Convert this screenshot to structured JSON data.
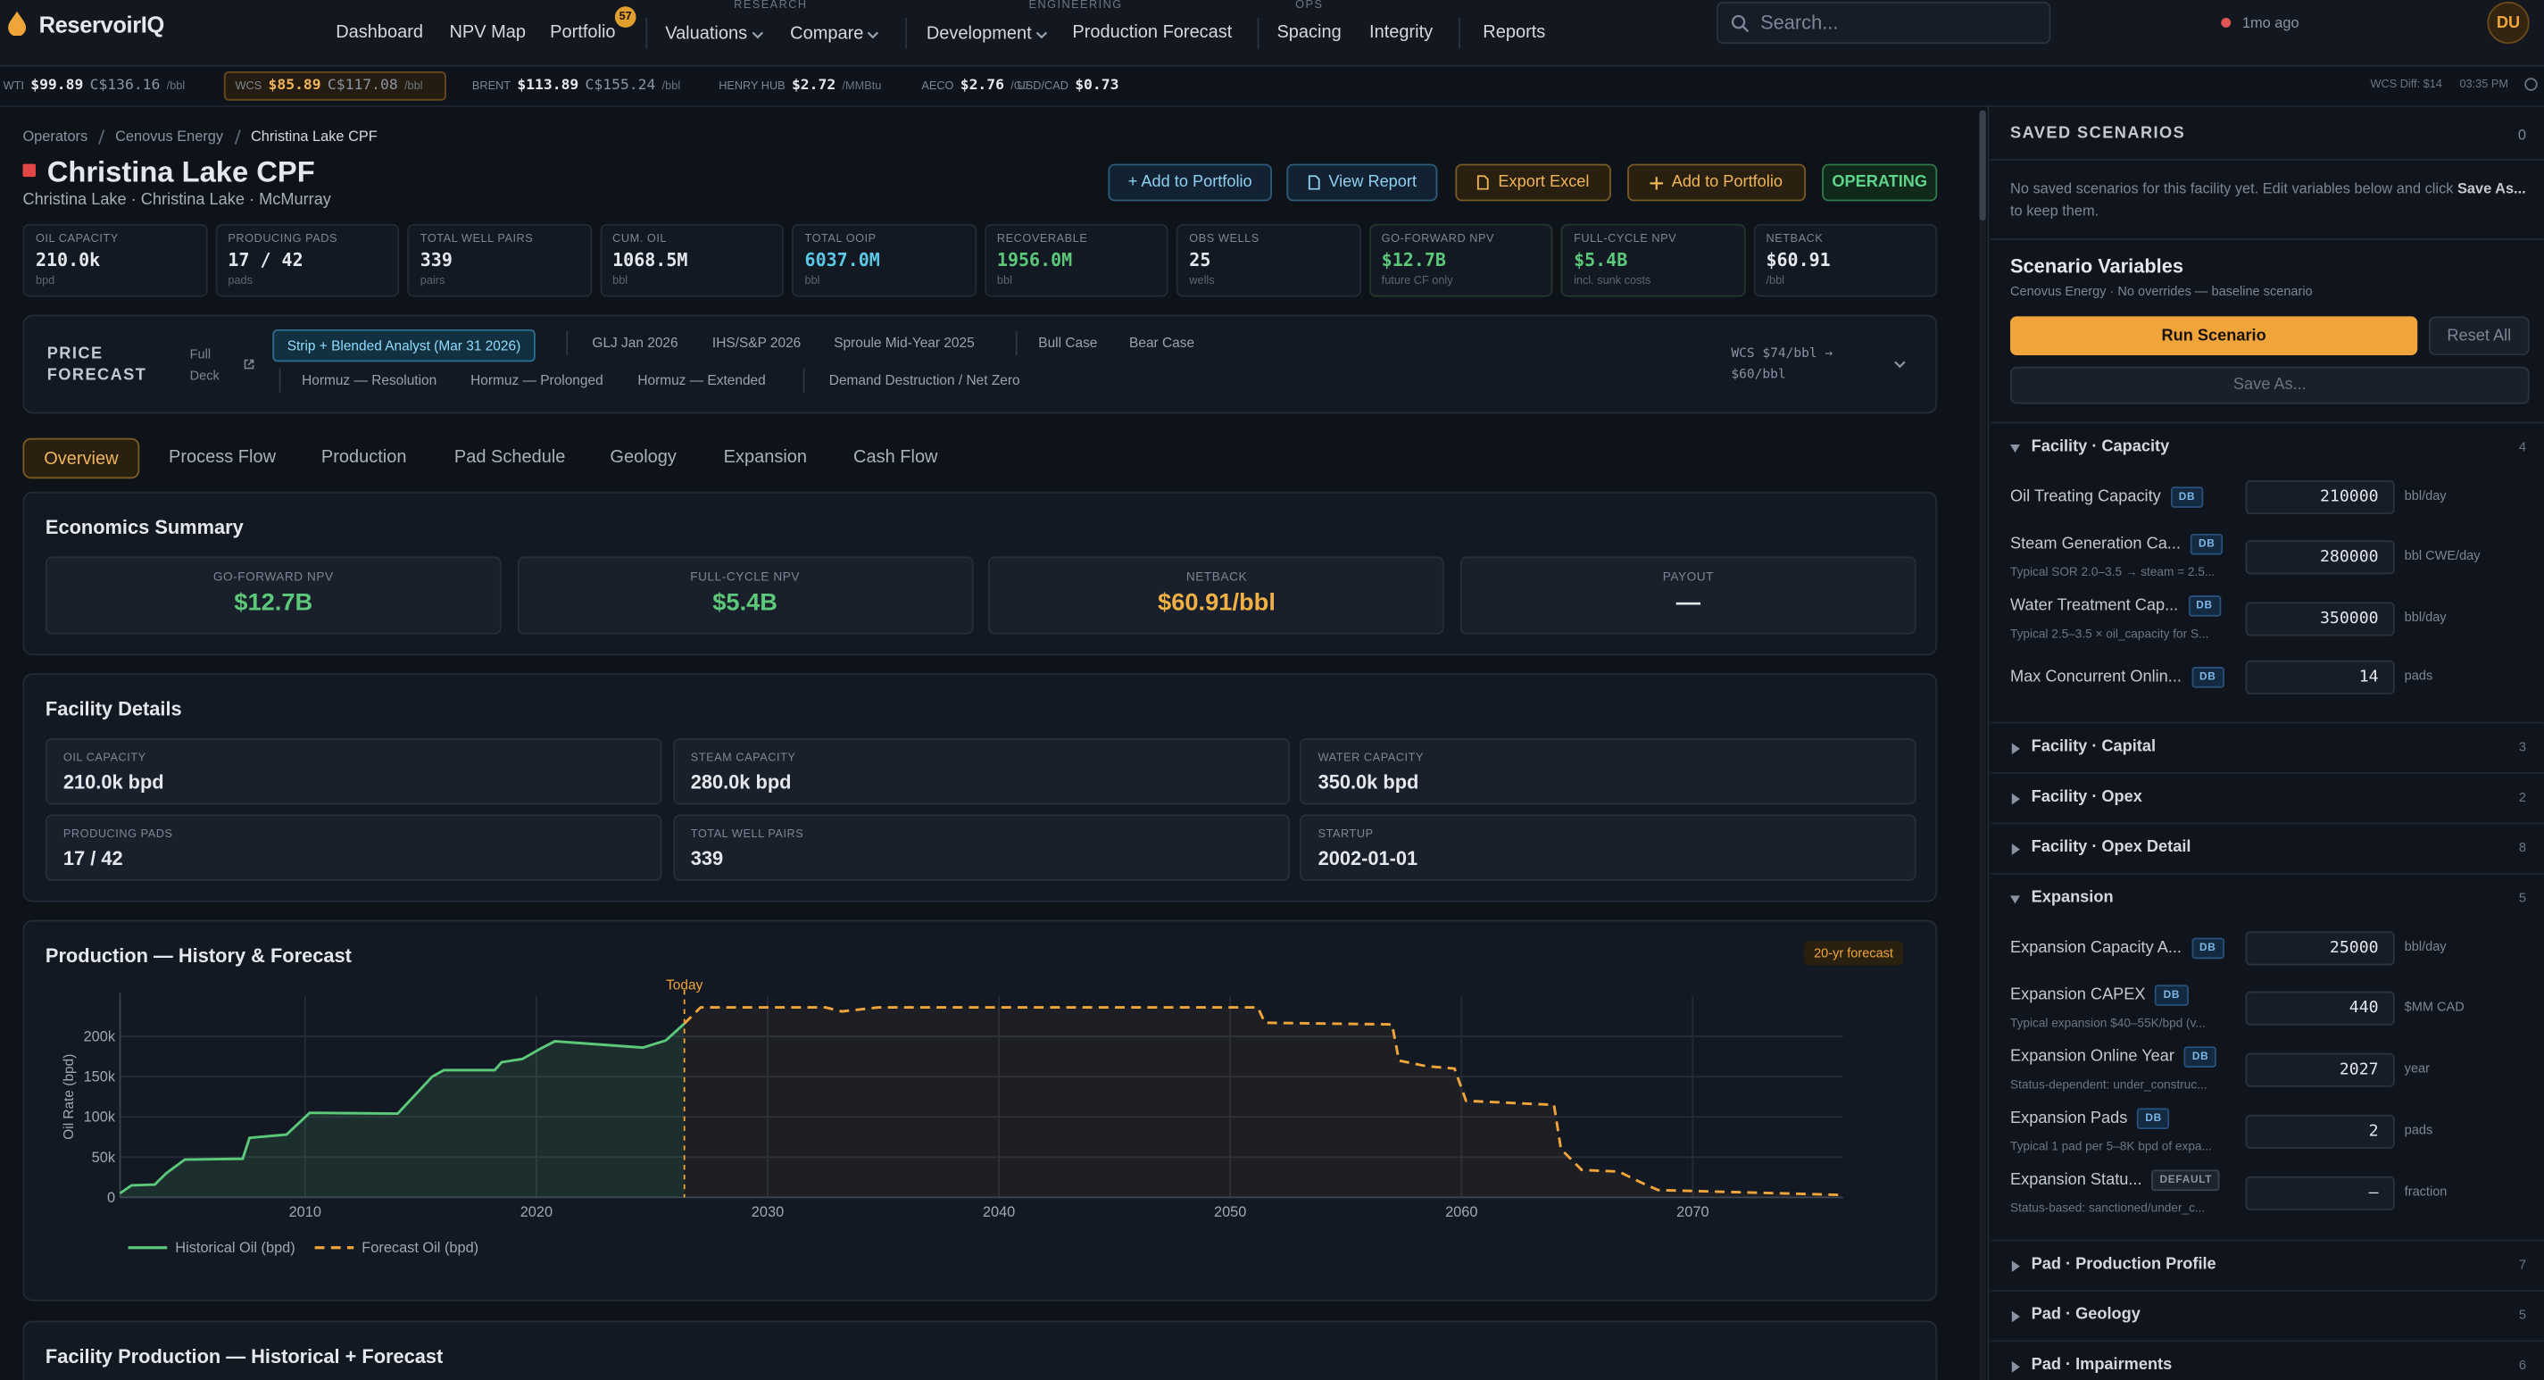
{
  "nav": {
    "brand": "ReservoirIQ",
    "items": [
      "Dashboard",
      "NPV Map",
      "Portfolio",
      "Valuations",
      "Compare",
      "Development",
      "Production Forecast",
      "Spacing",
      "Integrity",
      "Reports"
    ],
    "portfolio_badge": 57,
    "group_labels": [
      "RESEARCH",
      "ENGINEERING",
      "OPS"
    ],
    "search_placeholder": "Search...",
    "status": "1mo ago",
    "avatar": "DU"
  },
  "ticker": {
    "items": [
      {
        "name": "WTI",
        "usd": "$99.89",
        "cad": "C$136.16",
        "unit": "/bbl"
      },
      {
        "name": "WCS",
        "usd": "$85.89",
        "cad": "C$117.08",
        "unit": "/bbl"
      },
      {
        "name": "BRENT",
        "usd": "$113.89",
        "cad": "C$155.24",
        "unit": "/bbl"
      },
      {
        "name": "HENRY HUB",
        "usd": "$2.72",
        "unit": "/MMBtu"
      },
      {
        "name": "AECO",
        "usd": "$2.76",
        "unit": "/GJ"
      },
      {
        "name": "USD/CAD",
        "usd": "$0.73"
      }
    ],
    "diff": "WCS Diff: $14",
    "time": "03:35 PM"
  },
  "header": {
    "breadcrumb": [
      "Operators",
      "Cenovus Energy",
      "Christina Lake CPF"
    ],
    "title": "Christina Lake CPF",
    "subtitle": "Christina Lake · Christina Lake · McMurray",
    "buttons": [
      "+ Add to Portfolio",
      "View Report",
      "Export Excel",
      "Add to Portfolio"
    ],
    "status": "OPERATING"
  },
  "kpis": [
    {
      "label": "OIL CAPACITY",
      "value": "210.0k",
      "unit": "bpd"
    },
    {
      "label": "PRODUCING PADS",
      "value": "17 / 42",
      "unit": "pads"
    },
    {
      "label": "TOTAL WELL PAIRS",
      "value": "339",
      "unit": "pairs"
    },
    {
      "label": "CUM. OIL",
      "value": "1068.5M",
      "unit": "bbl"
    },
    {
      "label": "TOTAL OOIP",
      "value": "6037.0M",
      "unit": "bbl"
    },
    {
      "label": "RECOVERABLE",
      "value": "1956.0M",
      "unit": "bbl"
    },
    {
      "label": "OBS WELLS",
      "value": "25",
      "unit": "wells"
    },
    {
      "label": "GO-FORWARD NPV",
      "value": "$12.7B",
      "unit": "future CF only"
    },
    {
      "label": "FULL-CYCLE NPV",
      "value": "$5.4B",
      "unit": "incl. sunk costs"
    },
    {
      "label": "NETBACK",
      "value": "$60.91",
      "unit": "/bbl"
    }
  ],
  "price_forecast": {
    "label": "PRICE FORECAST",
    "deck": "Full Deck",
    "options": [
      [
        "Strip + Blended Analyst (Mar 31 2026)",
        "GLJ Jan 2026",
        "IHS/S&P 2026",
        "Sproule Mid-Year 2025",
        "Bull Case",
        "Bear Case"
      ],
      [
        "Hormuz — Resolution",
        "Hormuz — Prolonged",
        "Hormuz — Extended",
        "Demand Destruction / Net Zero"
      ]
    ],
    "summary": "WCS $74/bbl → $60/bbl"
  },
  "tabs": [
    "Overview",
    "Process Flow",
    "Production",
    "Pad Schedule",
    "Geology",
    "Expansion",
    "Cash Flow"
  ],
  "economics": {
    "title": "Economics Summary",
    "cards": [
      {
        "label": "GO-FORWARD NPV",
        "value": "$12.7B"
      },
      {
        "label": "FULL-CYCLE NPV",
        "value": "$5.4B"
      },
      {
        "label": "NETBACK",
        "value": "$60.91/bbl"
      },
      {
        "label": "PAYOUT",
        "value": "—"
      }
    ]
  },
  "facility": {
    "title": "Facility Details",
    "cards": [
      {
        "label": "OIL CAPACITY",
        "value": "210.0k bpd"
      },
      {
        "label": "STEAM CAPACITY",
        "value": "280.0k bpd"
      },
      {
        "label": "WATER CAPACITY",
        "value": "350.0k bpd"
      },
      {
        "label": "PRODUCING PADS",
        "value": "17 / 42"
      },
      {
        "label": "TOTAL WELL PAIRS",
        "value": "339"
      },
      {
        "label": "STARTUP",
        "value": "2002-01-01"
      }
    ]
  },
  "chart_data": {
    "type": "line",
    "title": "Production — History & Forecast",
    "badge": "20-yr forecast",
    "y_label": "Oil Rate (bpd)",
    "xlim": [
      2002,
      2076.5
    ],
    "ylim": [
      0,
      250000
    ],
    "xticks": [
      2010,
      2020,
      2030,
      2040,
      2050,
      2060,
      2070
    ],
    "yticks": [
      0,
      {
        "value": 50000,
        "label": "50k"
      },
      {
        "value": 100000,
        "label": "100k"
      },
      {
        "value": 150000,
        "label": "150k"
      },
      {
        "value": 200000,
        "label": "200k"
      }
    ],
    "grid": true,
    "annotation": {
      "label": "Today",
      "x": 2026.4
    },
    "series": [
      {
        "name": "Historical Oil (bpd)",
        "color": "#5cc879",
        "line_style": "solid",
        "x": [
          2002,
          2002.5,
          2003.5,
          2004,
          2004.8,
          2007.3,
          2007.6,
          2009.2,
          2010.2,
          2014,
          2015.5,
          2016,
          2018.2,
          2018.5,
          2019.4,
          2020.2,
          2020.8,
          2024.6,
          2025.6,
          2026.4
        ],
        "values": [
          5000,
          15000,
          16000,
          30000,
          47000,
          48000,
          74000,
          78000,
          105000,
          104000,
          150000,
          158000,
          158000,
          168000,
          172000,
          185000,
          194000,
          186000,
          195000,
          216000
        ]
      },
      {
        "name": "Forecast Oil (bpd)",
        "color": "#f0a53a",
        "line_style": "dashed",
        "x": [
          2026.4,
          2027.1,
          2032.5,
          2033.2,
          2034.8,
          2051.2,
          2051.5,
          2057.0,
          2057.3,
          2058.5,
          2059.7,
          2060.2,
          2064.0,
          2064.3,
          2065.2,
          2066.8,
          2067.8,
          2068.5,
          2076.4
        ],
        "values": [
          216000,
          236000,
          236000,
          231000,
          236000,
          236000,
          217000,
          215000,
          170000,
          163000,
          160000,
          120000,
          115000,
          60000,
          34000,
          32000,
          18000,
          9000,
          3000
        ]
      }
    ]
  },
  "next_section": {
    "title": "Facility Production — Historical + Forecast"
  },
  "scenarios": {
    "title": "SAVED SCENARIOS",
    "count": 0,
    "empty_text": "No saved scenarios for this facility yet. Edit variables below and click ",
    "empty_action": "Save As...",
    "empty_suffix": " to keep them."
  },
  "variables": {
    "title": "Scenario Variables",
    "subtitle": "Cenovus Energy · No overrides — baseline scenario",
    "run": "Run Scenario",
    "reset": "Reset All",
    "save": "Save As...",
    "groups": [
      {
        "name": "Facility · Capacity",
        "count": 4,
        "rows": [
          {
            "label": "Oil Treating Capacity",
            "tag": "DB",
            "value": 210000,
            "unit": "bbl/day"
          },
          {
            "label": "Steam Generation Ca...",
            "tag": "DB",
            "hint": "Typical SOR 2.0–3.5 → steam = 2.5...",
            "value": 280000,
            "unit": "bbl CWE/day"
          },
          {
            "label": "Water Treatment Cap...",
            "tag": "DB",
            "hint": "Typical 2.5–3.5 × oil_capacity for S...",
            "value": 350000,
            "unit": "bbl/day"
          },
          {
            "label": "Max Concurrent Onlin...",
            "tag": "DB",
            "value": 14,
            "unit": "pads"
          }
        ]
      },
      {
        "name": "Facility · Capital",
        "count": 3
      },
      {
        "name": "Facility · Opex",
        "count": 2
      },
      {
        "name": "Facility · Opex Detail",
        "count": 8
      },
      {
        "name": "Expansion",
        "count": 5,
        "rows": [
          {
            "label": "Expansion Capacity A...",
            "tag": "DB",
            "value": 25000,
            "unit": "bbl/day"
          },
          {
            "label": "Expansion CAPEX",
            "tag": "DB",
            "hint": "Typical expansion $40–55K/bpd (v...",
            "value": 440,
            "unit": "$MM CAD"
          },
          {
            "label": "Expansion Online Year",
            "tag": "DB",
            "hint": "Status-dependent: under_construc...",
            "value": 2027,
            "unit": "year"
          },
          {
            "label": "Expansion Pads",
            "tag": "DB",
            "hint": "Typical 1 pad per 5–8K bpd of expa...",
            "value": 2,
            "unit": "pads"
          },
          {
            "label": "Expansion Statu...",
            "tag": "DEFAULT",
            "hint": "Status-based: sanctioned/under_c...",
            "value": "—",
            "unit": "fraction"
          }
        ]
      },
      {
        "name": "Pad · Production Profile",
        "count": 7
      },
      {
        "name": "Pad · Geology",
        "count": 5
      },
      {
        "name": "Pad · Impairments",
        "count": 6
      }
    ]
  }
}
